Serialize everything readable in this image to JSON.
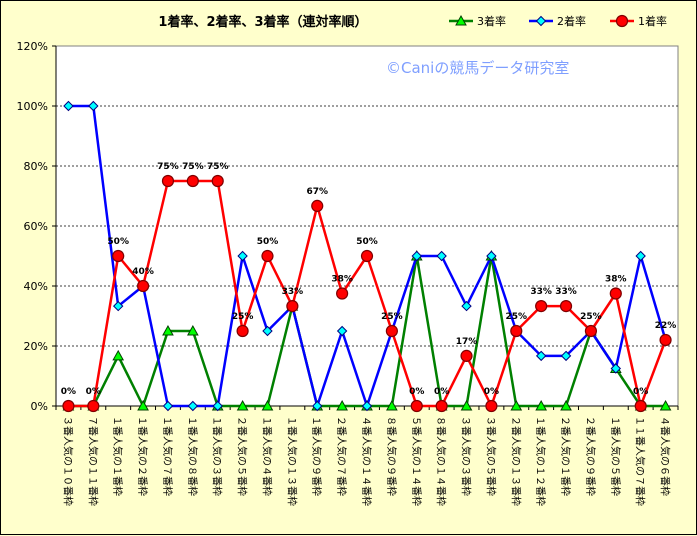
{
  "chart_data": {
    "type": "line",
    "title": "1着率、2着率、3着率（連対率順）",
    "watermark": "©Caniの競馬データ研究室",
    "ylim": [
      0,
      120
    ],
    "y_ticks": [
      "0%",
      "20%",
      "40%",
      "60%",
      "80%",
      "100%",
      "120%"
    ],
    "categories": [
      "３番人気の１０番枠",
      "７番人気の１１番枠",
      "１番人気の１番枠",
      "１番人気の２番枠",
      "１番人気の７番枠",
      "１番人気の８番枠",
      "１番人気の３番枠",
      "２番人気の５番枠",
      "１番人気の４番枠",
      "１番人気の１３番枠",
      "１番人気の９番枠",
      "２番人気の７番枠",
      "４番人気の１４番枠",
      "８番人気の９番枠",
      "５番人気の１４番枠",
      "８番人気の１４番枠",
      "３番人気の３番枠",
      "３番人気の５番枠",
      "２番人気の１３番枠",
      "１番人気の１２番枠",
      "２番人気の１番枠",
      "２番人気の９番枠",
      "１番人気の５番枠",
      "１１番人気の７番枠",
      "４番人気の６番枠"
    ],
    "series": [
      {
        "name": "3着率",
        "color": "#008000",
        "marker": "triangle",
        "values": [
          0,
          0,
          16.7,
          0,
          25,
          25,
          0,
          0,
          0,
          33.3,
          0,
          0,
          0,
          0,
          50,
          0,
          0,
          50,
          0,
          0,
          0,
          25,
          12.5,
          0,
          0
        ]
      },
      {
        "name": "2着率",
        "color": "#0000ff",
        "marker": "diamond",
        "values": [
          100,
          100,
          33.3,
          40,
          0,
          0,
          0,
          50,
          25,
          33.3,
          0,
          25,
          0,
          25,
          50,
          50,
          33.3,
          50,
          25,
          16.7,
          16.7,
          25,
          12.5,
          50,
          22
        ]
      },
      {
        "name": "1着率",
        "color": "#ff0000",
        "marker": "circle",
        "values": [
          0,
          0,
          50,
          40,
          75,
          75,
          75,
          25,
          50,
          33.3,
          66.7,
          37.5,
          50,
          25,
          0,
          0,
          16.7,
          0,
          25,
          33.3,
          33.3,
          25,
          37.5,
          0,
          22
        ]
      }
    ],
    "data_labels": [
      "0%",
      "0%",
      "50%",
      "40%",
      "75%",
      "75%",
      "75%",
      "25%",
      "50%",
      "33%",
      "67%",
      "38%",
      "50%",
      "25%",
      "0%",
      "0%",
      "17%",
      "0%",
      "25%",
      "33%",
      "33%",
      "25%",
      "38%",
      "0%",
      "22%"
    ],
    "grid": "horizontal dashed",
    "legend": "top-right"
  }
}
